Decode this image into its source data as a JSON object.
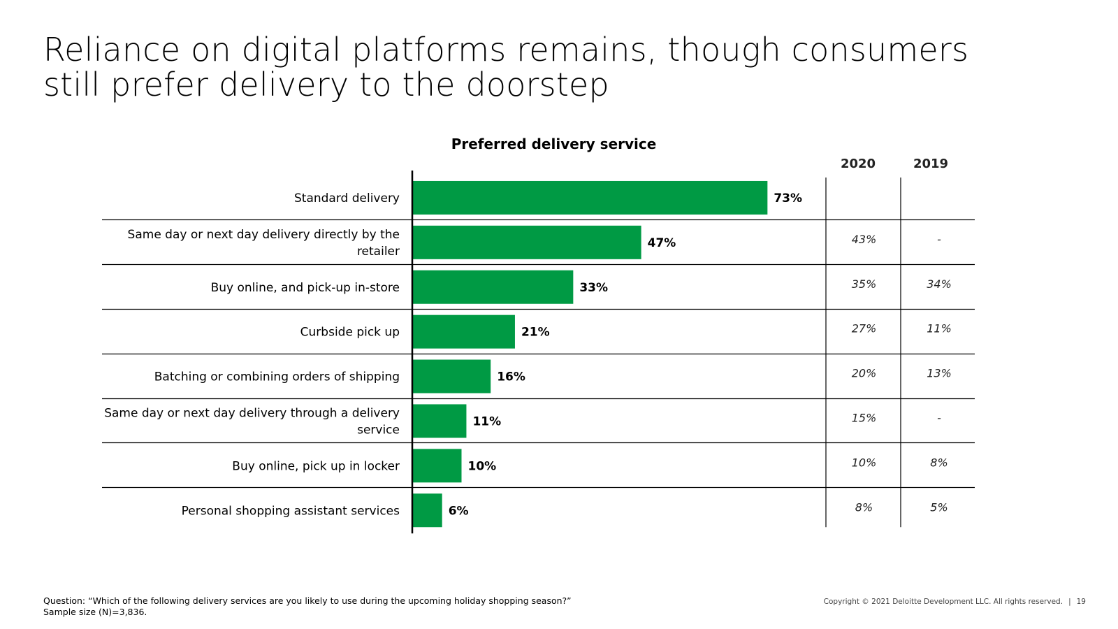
{
  "slide": {
    "title": "Reliance on digital platforms remains, though consumers still prefer delivery to the doorstep",
    "question": "Question: “Which of the following delivery services are you likely to use during the upcoming holiday shopping season?”",
    "sample": "Sample size (N)=3,836.",
    "copyright": "Copyright © 2021 Deloitte Development LLC. All rights reserved.",
    "page_number": "19"
  },
  "colors": {
    "bar": "#009a44",
    "line": "#000000"
  },
  "chart_data": {
    "type": "bar",
    "orientation": "horizontal",
    "title": "Preferred delivery service",
    "categories": [
      [
        "Standard delivery"
      ],
      [
        "Same day or next day delivery directly by the",
        "retailer"
      ],
      [
        "Buy online, and pick-up in-store"
      ],
      [
        "Curbside pick up"
      ],
      [
        "Batching or combining orders of shipping"
      ],
      [
        "Same day or next day delivery through a delivery",
        "service"
      ],
      [
        "Buy online, pick up in locker"
      ],
      [
        "Personal shopping assistant services"
      ]
    ],
    "values": [
      73,
      47,
      33,
      21,
      16,
      11,
      10,
      6
    ],
    "value_labels": [
      "73%",
      "47%",
      "33%",
      "21%",
      "16%",
      "11%",
      "10%",
      "6%"
    ],
    "xlim": [
      0,
      100
    ],
    "comparison": {
      "headers": [
        "2020",
        "2019"
      ],
      "rows": [
        [
          "",
          ""
        ],
        [
          "43%",
          "-"
        ],
        [
          "35%",
          "34%"
        ],
        [
          "27%",
          "11%"
        ],
        [
          "20%",
          "13%"
        ],
        [
          "15%",
          "-"
        ],
        [
          "10%",
          "8%"
        ],
        [
          "8%",
          "5%"
        ]
      ]
    }
  }
}
